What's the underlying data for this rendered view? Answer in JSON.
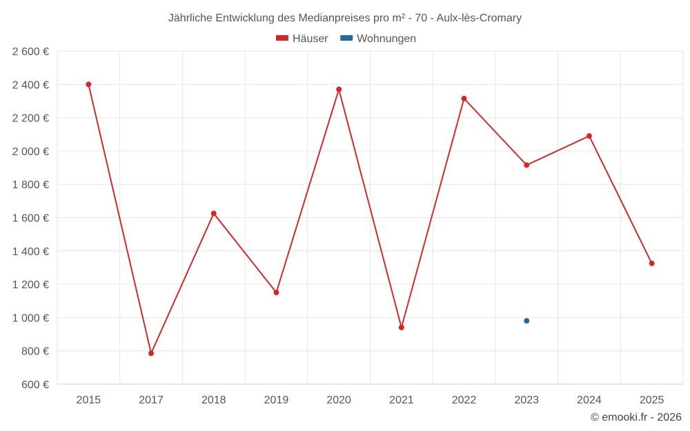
{
  "chart_data": {
    "type": "line",
    "title": "Jährliche Entwicklung des Medianpreises pro m² - 70 - Aulx-lès-Cromary",
    "categories": [
      "2015",
      "2017",
      "2018",
      "2019",
      "2020",
      "2021",
      "2022",
      "2023",
      "2024",
      "2025"
    ],
    "y_ticks": [
      "600 €",
      "800 €",
      "1 000 €",
      "1 200 €",
      "1 400 €",
      "1 600 €",
      "1 800 €",
      "2 000 €",
      "2 200 €",
      "2 400 €",
      "2 600 €"
    ],
    "ylim": [
      600,
      2600
    ],
    "grid": true,
    "legend_position": "top-center",
    "series": [
      {
        "name": "Häuser",
        "color": "#d62728",
        "values": [
          2400,
          785,
          1625,
          1150,
          2370,
          940,
          2315,
          1915,
          2090,
          1325
        ]
      },
      {
        "name": "Wohnungen",
        "color": "#1f6aa5",
        "values": [
          null,
          null,
          null,
          null,
          null,
          null,
          null,
          980,
          null,
          null
        ]
      }
    ]
  },
  "credit": "© emooki.fr - 2026"
}
